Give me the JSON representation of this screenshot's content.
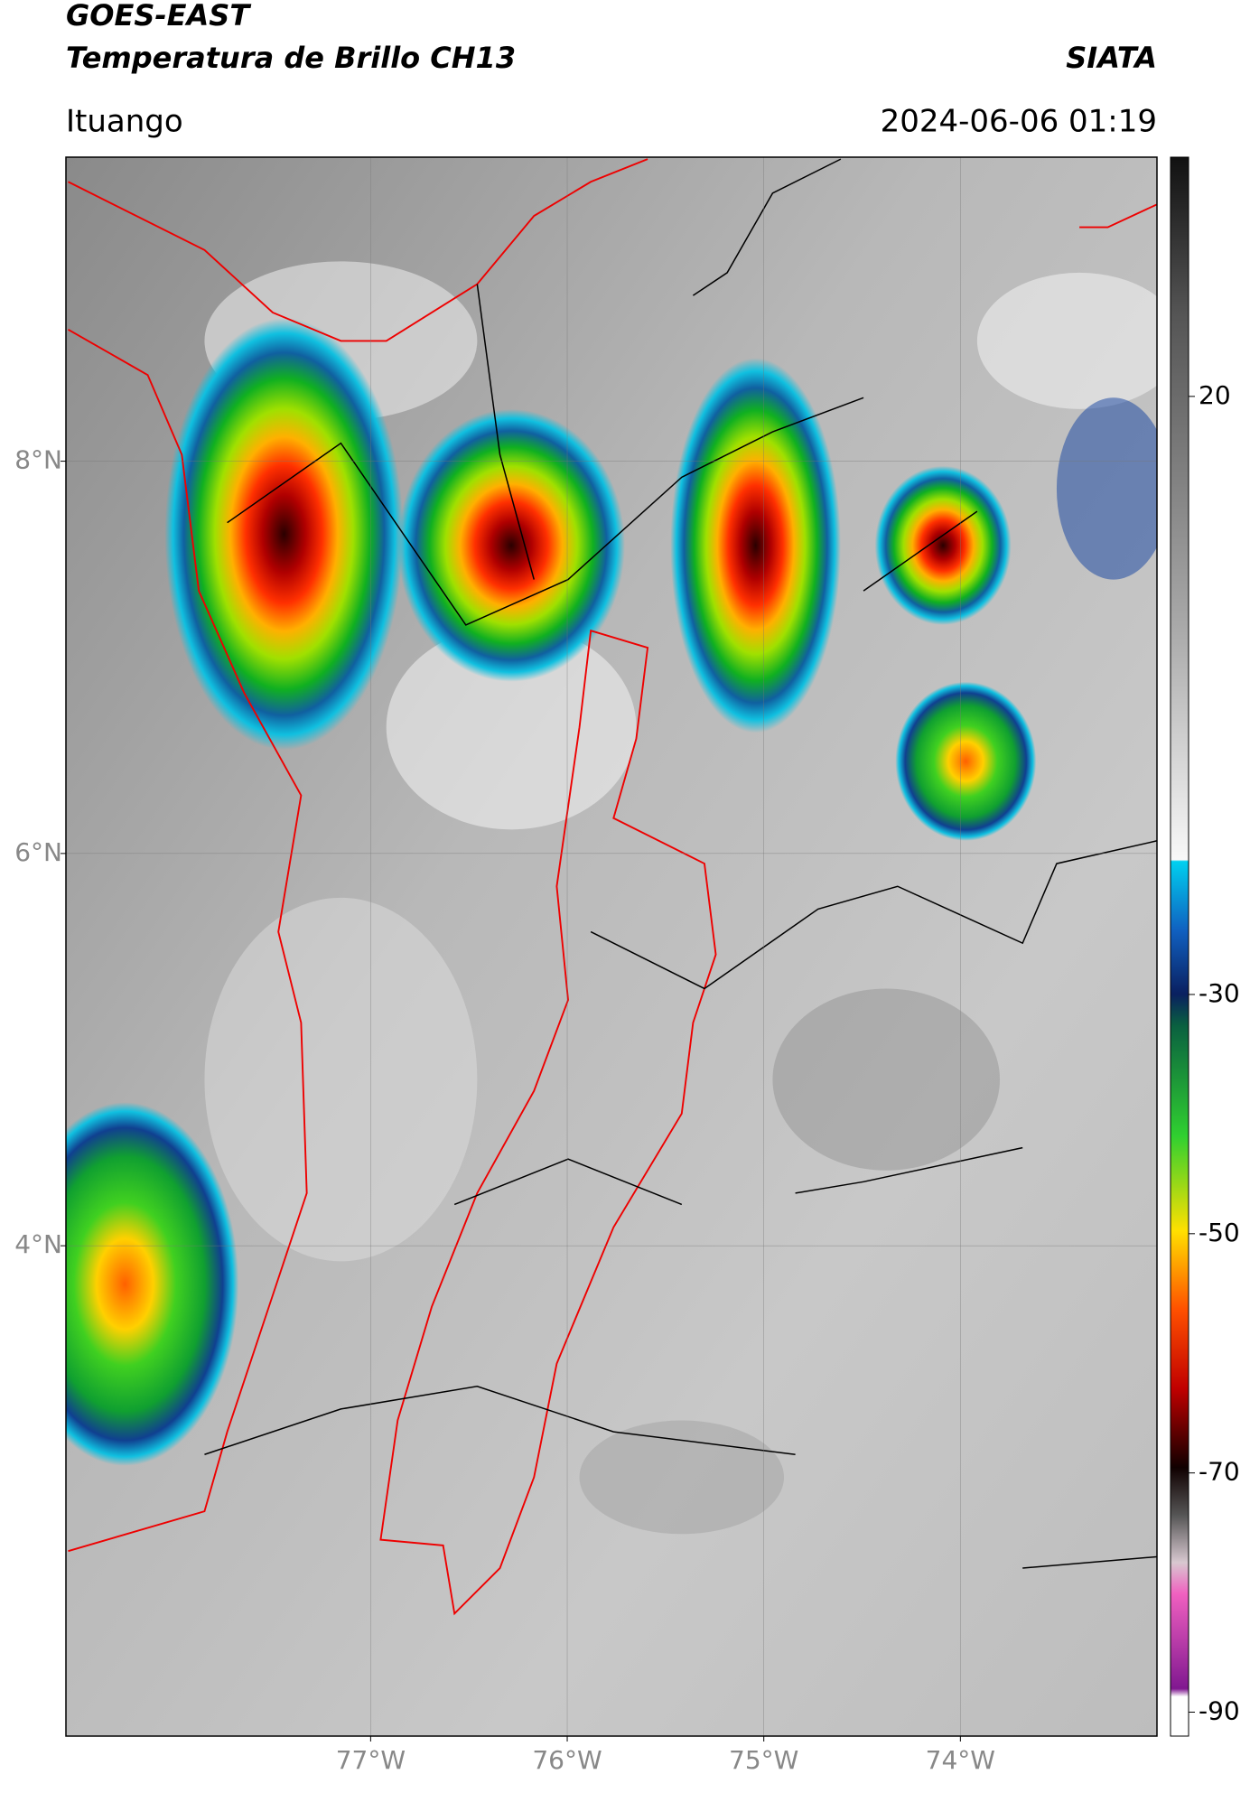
{
  "header": {
    "satellite": "GOES-EAST",
    "product": "Temperatura de Brillo CH13",
    "organization": "SIATA",
    "location": "Ituango",
    "datetime": "2024-06-06 01:19"
  },
  "map": {
    "xlim": [
      -78.55,
      -73.0
    ],
    "ylim": [
      1.5,
      9.55
    ],
    "xticks": [
      {
        "value": -77,
        "label": "77°W"
      },
      {
        "value": -76,
        "label": "76°W"
      },
      {
        "value": -75,
        "label": "75°W"
      },
      {
        "value": -74,
        "label": "74°W"
      }
    ],
    "yticks": [
      {
        "value": 8,
        "label": "8°N"
      },
      {
        "value": 6,
        "label": "6°N"
      },
      {
        "value": 4,
        "label": "4°N"
      }
    ],
    "grid": true
  },
  "colorbar": {
    "lim": [
      -92,
      40
    ],
    "ticks": [
      20,
      -30,
      -50,
      -70,
      -90
    ]
  }
}
